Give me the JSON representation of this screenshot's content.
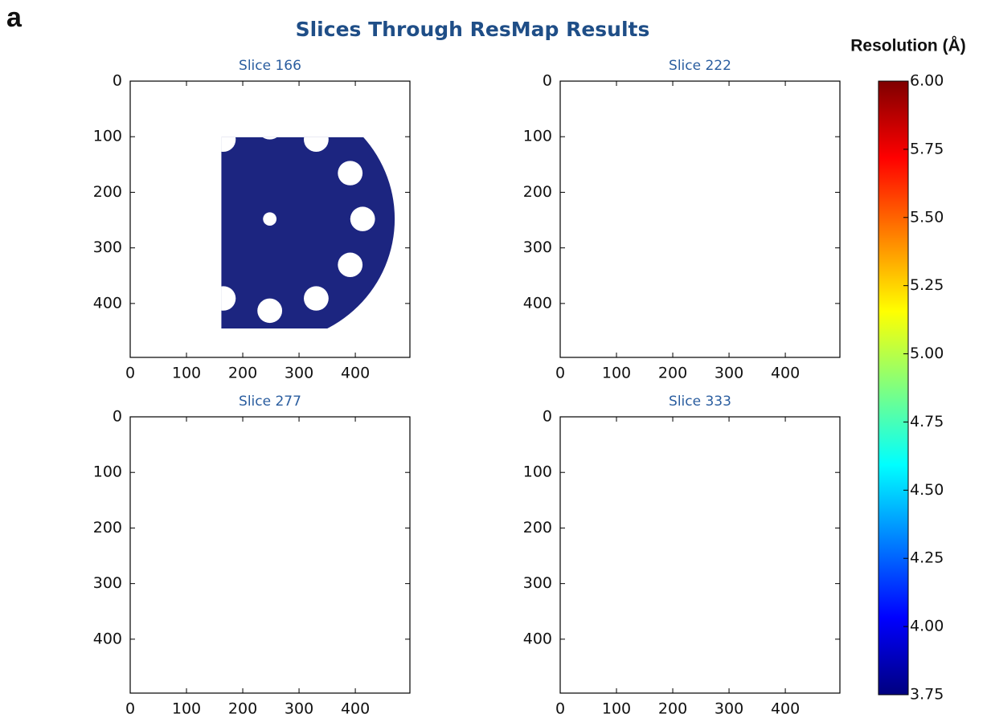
{
  "panel_label": "a",
  "title": "Slices Through ResMap Results",
  "chart_data": [
    {
      "type": "image",
      "title": "Slice 166",
      "xlim": [
        0,
        497
      ],
      "ylim": [
        497,
        0
      ],
      "xticks": [
        0,
        100,
        200,
        300,
        400
      ],
      "yticks": [
        0,
        100,
        200,
        300,
        400
      ]
    },
    {
      "type": "image",
      "title": "Slice 222",
      "xlim": [
        0,
        497
      ],
      "ylim": [
        497,
        0
      ],
      "xticks": [
        0,
        100,
        200,
        300,
        400
      ],
      "yticks": [
        0,
        100,
        200,
        300,
        400
      ]
    },
    {
      "type": "image",
      "title": "Slice 277",
      "xlim": [
        0,
        497
      ],
      "ylim": [
        497,
        0
      ],
      "xticks": [
        0,
        100,
        200,
        300,
        400
      ],
      "yticks": [
        0,
        100,
        200,
        300,
        400
      ]
    },
    {
      "type": "image",
      "title": "Slice 333",
      "xlim": [
        0,
        497
      ],
      "ylim": [
        497,
        0
      ],
      "xticks": [
        0,
        100,
        200,
        300,
        400
      ],
      "yticks": [
        0,
        100,
        200,
        300,
        400
      ]
    },
    {
      "type": "colorbar",
      "title": "Resolution (Å)",
      "colormap": "jet",
      "ylim": [
        3.75,
        6.0
      ],
      "yticks": [
        3.75,
        {
          "value": 4.0,
          "label": "4.00"
        },
        4.25,
        {
          "value": 4.5,
          "label": "4.50"
        },
        4.75,
        {
          "value": 5.0,
          "label": "5.00"
        },
        5.25,
        {
          "value": 5.5,
          "label": "5.50"
        },
        5.75,
        {
          "value": 6.0,
          "label": "6.00"
        }
      ]
    }
  ]
}
